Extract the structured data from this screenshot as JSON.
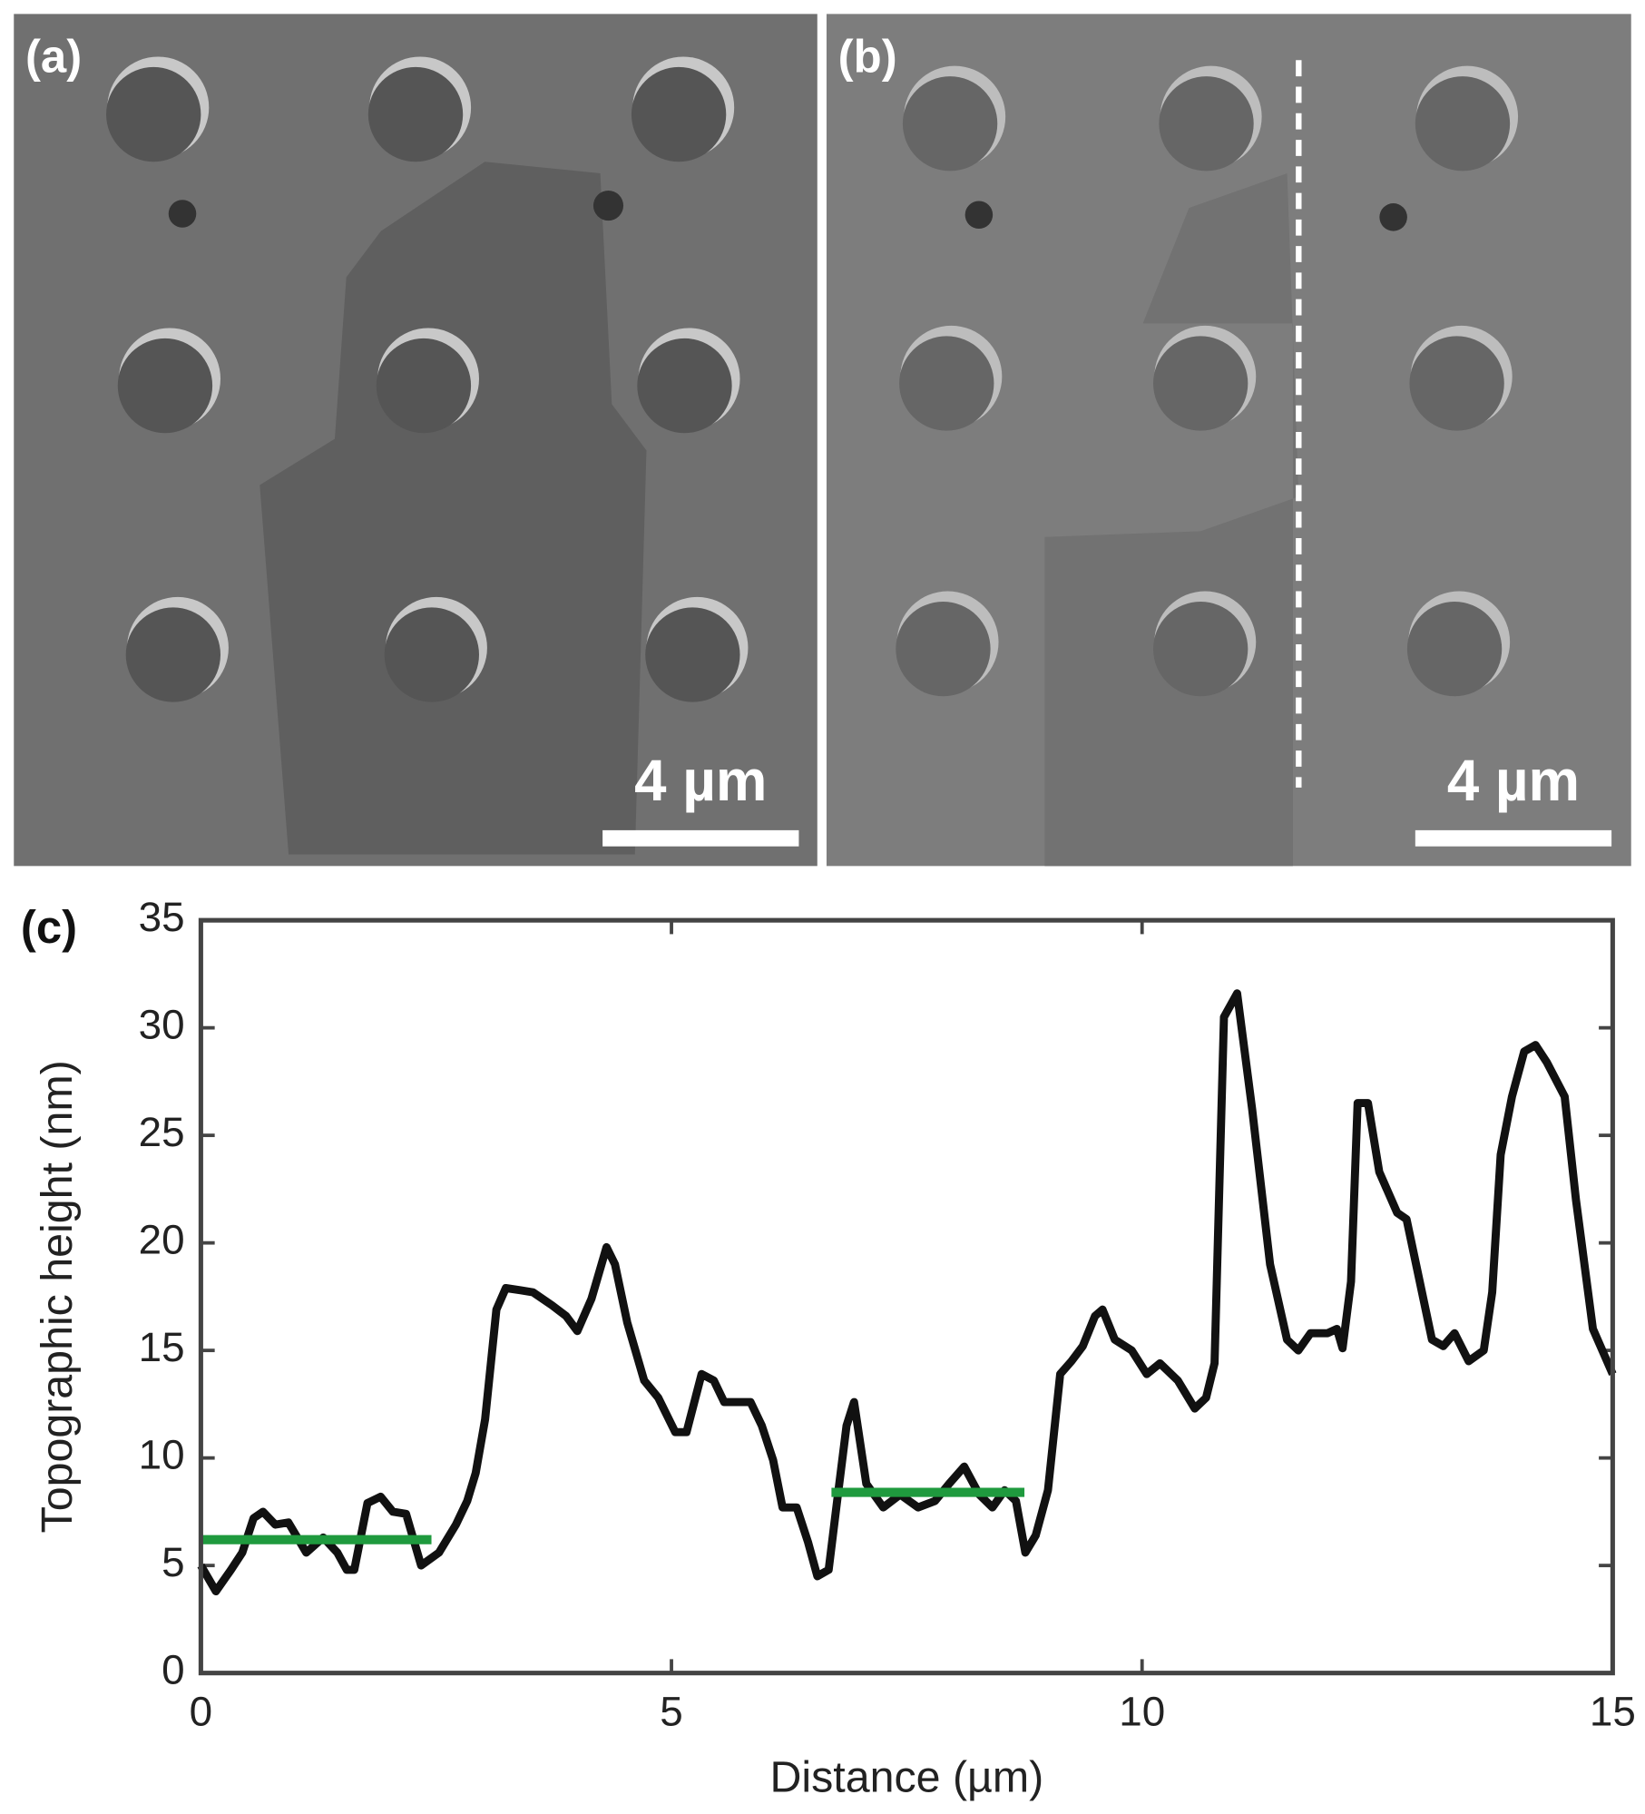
{
  "panels": [
    {
      "label": "(a)",
      "scale_bar": "4 µm"
    },
    {
      "label": "(b)",
      "scale_bar": "4 µm"
    }
  ],
  "chart_data": {
    "type": "line",
    "panel_label": "(c)",
    "x_label": "Distance (µm)",
    "y_label": "Topographic height (nm)",
    "xlim": [
      0,
      15
    ],
    "xticks": [
      0,
      5,
      10,
      15
    ],
    "ylim": [
      0,
      35
    ],
    "yticks": [
      0,
      5,
      10,
      15,
      20,
      25,
      30,
      35
    ],
    "grid": false,
    "series": [
      {
        "color": "#111111",
        "x": [
          0,
          0.16,
          0.32,
          0.44,
          0.56,
          0.66,
          0.79,
          0.93,
          1.12,
          1.3,
          1.45,
          1.55,
          1.63,
          1.77,
          1.91,
          2.04,
          2.18,
          2.34,
          2.53,
          2.71,
          2.83,
          2.92,
          3.02,
          3.14,
          3.24,
          3.39,
          3.53,
          3.73,
          3.88,
          4.0,
          4.15,
          4.31,
          4.4,
          4.53,
          4.71,
          4.86,
          5.04,
          5.16,
          5.32,
          5.45,
          5.56,
          5.69,
          5.84,
          5.96,
          6.08,
          6.18,
          6.33,
          6.45,
          6.55,
          6.67,
          6.76,
          6.86,
          6.94,
          7.07,
          7.25,
          7.43,
          7.62,
          7.8,
          7.95,
          8.11,
          8.27,
          8.41,
          8.54,
          8.66,
          8.76,
          8.87,
          9.0,
          9.13,
          9.25,
          9.37,
          9.5,
          9.58,
          9.71,
          9.89,
          10.05,
          10.19,
          10.38,
          10.56,
          10.68,
          10.77,
          10.87,
          11.01,
          11.17,
          11.36,
          11.54,
          11.66,
          11.79,
          11.97,
          12.07,
          12.13,
          12.22,
          12.29,
          12.4,
          12.52,
          12.71,
          12.81,
          12.95,
          13.08,
          13.2,
          13.32,
          13.47,
          13.63,
          13.72,
          13.81,
          13.93,
          14.06,
          14.18,
          14.3,
          14.49,
          14.61,
          14.79,
          14.92,
          15.0
        ],
        "values": [
          5.0,
          3.8,
          4.8,
          5.6,
          7.2,
          7.5,
          6.9,
          7.0,
          5.6,
          6.3,
          5.6,
          4.8,
          4.8,
          7.9,
          8.2,
          7.5,
          7.4,
          5.0,
          5.6,
          6.9,
          8.0,
          9.3,
          11.8,
          16.9,
          17.9,
          17.8,
          17.7,
          17.1,
          16.6,
          15.9,
          17.4,
          19.8,
          19.0,
          16.3,
          13.6,
          12.8,
          11.2,
          11.2,
          13.9,
          13.6,
          12.6,
          12.6,
          12.6,
          11.5,
          9.9,
          7.7,
          7.7,
          6.1,
          4.5,
          4.8,
          8.0,
          11.5,
          12.6,
          8.8,
          7.7,
          8.3,
          7.7,
          8.0,
          8.8,
          9.6,
          8.3,
          7.7,
          8.5,
          8.0,
          5.6,
          6.4,
          8.5,
          13.9,
          14.5,
          15.2,
          16.6,
          16.9,
          15.5,
          15.0,
          13.9,
          14.4,
          13.6,
          12.3,
          12.8,
          14.4,
          30.5,
          31.6,
          26.2,
          19.0,
          15.5,
          15.0,
          15.8,
          15.8,
          16.0,
          15.1,
          18.2,
          26.5,
          26.5,
          23.3,
          21.4,
          21.1,
          18.2,
          15.5,
          15.2,
          15.8,
          14.5,
          15.0,
          17.7,
          24.1,
          26.8,
          28.9,
          29.2,
          28.4,
          26.8,
          22.0,
          16.0,
          14.7,
          13.9
        ]
      }
    ],
    "reference_lines": [
      {
        "color": "#1f9a3e",
        "x": [
          0,
          2.45
        ],
        "values": [
          6.2,
          6.2
        ]
      },
      {
        "color": "#1f9a3e",
        "x": [
          6.7,
          8.75
        ],
        "values": [
          8.4,
          8.4
        ]
      }
    ]
  }
}
